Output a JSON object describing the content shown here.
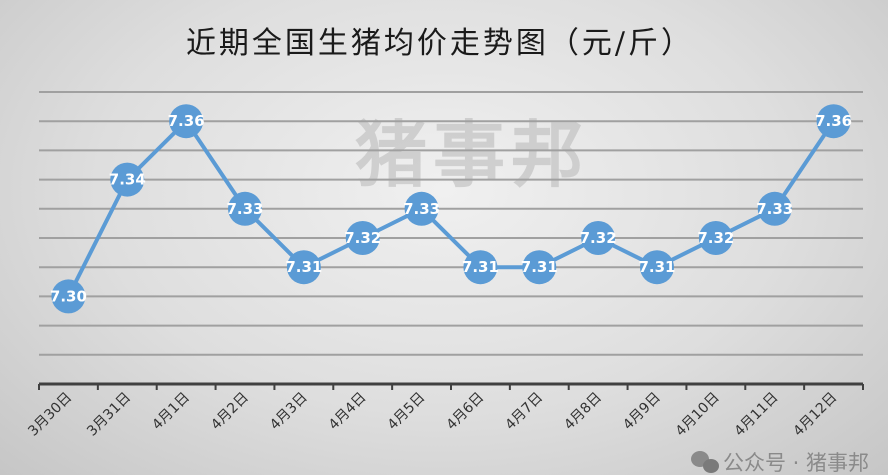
{
  "chart_data": {
    "type": "line",
    "title": "近期全国生猪均价走势图（元/斤）",
    "categories": [
      "3月30日",
      "3月31日",
      "4月1日",
      "4月2日",
      "4月3日",
      "4月4日",
      "4月5日",
      "4月6日",
      "4月7日",
      "4月8日",
      "4月9日",
      "4月10日",
      "4月11日",
      "4月12日"
    ],
    "values": [
      7.3,
      7.34,
      7.36,
      7.33,
      7.31,
      7.32,
      7.33,
      7.31,
      7.31,
      7.32,
      7.31,
      7.32,
      7.33,
      7.36
    ],
    "data_labels": [
      "7.30",
      "7.34",
      "7.36",
      "7.33",
      "7.31",
      "7.32",
      "7.33",
      "7.31",
      "7.31",
      "7.32",
      "7.31",
      "7.32",
      "7.33",
      "7.36"
    ],
    "ylim": [
      7.27,
      7.37
    ],
    "y_step": 0.01,
    "grid": true,
    "y_tick_labels_shown": false,
    "legend": "none",
    "colors": {
      "line": "#5b9bd5",
      "marker": "#5b9bd5",
      "label": "#ffffff",
      "grid": "#a0a0a0",
      "axis": "#404040"
    }
  },
  "watermark": "猪事邦",
  "footer_watermark": {
    "icon": "wechat-icon",
    "text": "公众号 · 猪事邦"
  }
}
